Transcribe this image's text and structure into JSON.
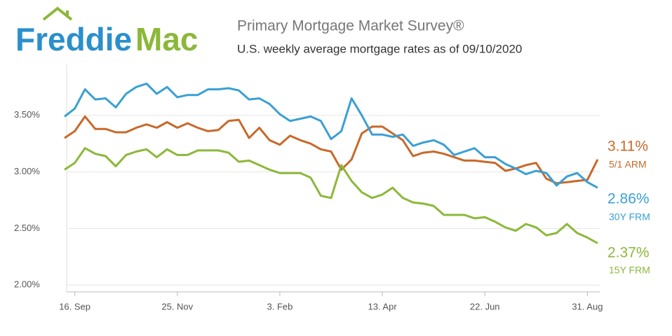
{
  "header": {
    "logo_first": "Freddie",
    "logo_second": "Mac"
  },
  "chart_data": {
    "type": "line",
    "title": "Primary Mortgage Market Survey®",
    "subtitle": "U.S. weekly average mortgage rates as of 09/10/2020",
    "categories": [
      null,
      "16. Sep",
      null,
      null,
      null,
      null,
      null,
      null,
      null,
      null,
      null,
      "25. Nov",
      null,
      null,
      null,
      null,
      null,
      null,
      null,
      null,
      null,
      "3. Feb",
      null,
      null,
      null,
      null,
      null,
      null,
      null,
      null,
      null,
      "13. Apr",
      null,
      null,
      null,
      null,
      null,
      null,
      null,
      null,
      null,
      "22. Jun",
      null,
      null,
      null,
      null,
      null,
      null,
      null,
      null,
      null,
      "31. Aug",
      null
    ],
    "ylim": [
      1.94,
      3.95
    ],
    "yticks": [
      {
        "value": 2.0,
        "label": "2.00%"
      },
      {
        "value": 2.5,
        "label": "2.50%"
      },
      {
        "value": 3.0,
        "label": "3.00%"
      },
      {
        "value": 3.5,
        "label": "3.50%"
      }
    ],
    "grid": true,
    "series": [
      {
        "name": "5/1 ARM",
        "color": "#c8692a",
        "values": [
          3.3,
          3.36,
          3.49,
          3.38,
          3.38,
          3.35,
          3.35,
          3.39,
          3.42,
          3.39,
          3.44,
          3.39,
          3.43,
          3.39,
          3.36,
          3.37,
          3.45,
          3.46,
          3.3,
          3.39,
          3.28,
          3.24,
          3.32,
          3.28,
          3.25,
          3.2,
          3.18,
          3.02,
          3.11,
          3.34,
          3.4,
          3.4,
          3.34,
          3.28,
          3.14,
          3.17,
          3.18,
          3.16,
          3.13,
          3.1,
          3.1,
          3.09,
          3.08,
          3.01,
          3.03,
          3.06,
          3.08,
          2.94,
          2.9,
          2.91,
          2.92,
          2.93,
          3.11
        ],
        "value_labels": [
          null,
          null,
          null,
          null,
          null,
          null,
          null,
          null,
          null,
          null,
          null,
          null,
          null,
          null,
          null,
          null,
          null,
          null,
          null,
          null,
          null,
          null,
          null,
          null,
          null,
          null,
          null,
          null,
          null,
          null,
          null,
          null,
          null,
          null,
          null,
          null,
          null,
          null,
          null,
          null,
          null,
          null,
          null,
          null,
          null,
          null,
          null,
          null,
          null,
          null,
          null,
          null,
          "3.11%"
        ]
      },
      {
        "name": "30Y FRM",
        "color": "#3aa0d3",
        "values": [
          3.49,
          3.56,
          3.73,
          3.64,
          3.65,
          3.57,
          3.69,
          3.75,
          3.78,
          3.69,
          3.75,
          3.66,
          3.68,
          3.68,
          3.73,
          3.73,
          3.74,
          3.72,
          3.64,
          3.65,
          3.6,
          3.51,
          3.45,
          3.47,
          3.49,
          3.45,
          3.29,
          3.36,
          3.65,
          3.5,
          3.33,
          3.33,
          3.31,
          3.33,
          3.23,
          3.26,
          3.28,
          3.24,
          3.15,
          3.18,
          3.21,
          3.13,
          3.13,
          3.07,
          3.03,
          2.98,
          3.01,
          2.99,
          2.88,
          2.96,
          2.99,
          2.91,
          2.86
        ],
        "value_labels": [
          null,
          null,
          null,
          null,
          null,
          null,
          null,
          null,
          null,
          null,
          null,
          null,
          null,
          null,
          null,
          null,
          null,
          null,
          null,
          null,
          null,
          null,
          null,
          null,
          null,
          null,
          null,
          null,
          null,
          null,
          null,
          null,
          null,
          null,
          null,
          null,
          null,
          null,
          null,
          null,
          null,
          null,
          null,
          null,
          null,
          null,
          null,
          null,
          null,
          null,
          null,
          null,
          "2.86%"
        ]
      },
      {
        "name": "15Y FRM",
        "color": "#8cb83a",
        "values": [
          3.02,
          3.08,
          3.21,
          3.16,
          3.14,
          3.05,
          3.15,
          3.18,
          3.2,
          3.13,
          3.2,
          3.15,
          3.15,
          3.19,
          3.19,
          3.19,
          3.17,
          3.09,
          3.1,
          3.06,
          3.02,
          2.99,
          2.99,
          2.99,
          2.95,
          2.79,
          2.77,
          3.06,
          2.92,
          2.82,
          2.77,
          2.8,
          2.86,
          2.77,
          2.73,
          2.72,
          2.7,
          2.62,
          2.62,
          2.62,
          2.59,
          2.6,
          2.56,
          2.51,
          2.48,
          2.54,
          2.51,
          2.44,
          2.46,
          2.54,
          2.46,
          2.42,
          2.37
        ],
        "value_labels": [
          null,
          null,
          null,
          null,
          null,
          null,
          null,
          null,
          null,
          null,
          null,
          null,
          null,
          null,
          null,
          null,
          null,
          null,
          null,
          null,
          null,
          null,
          null,
          null,
          null,
          null,
          null,
          null,
          null,
          null,
          null,
          null,
          null,
          null,
          null,
          null,
          null,
          null,
          null,
          null,
          null,
          null,
          null,
          null,
          null,
          null,
          null,
          null,
          null,
          null,
          null,
          null,
          "2.37%"
        ]
      }
    ]
  }
}
